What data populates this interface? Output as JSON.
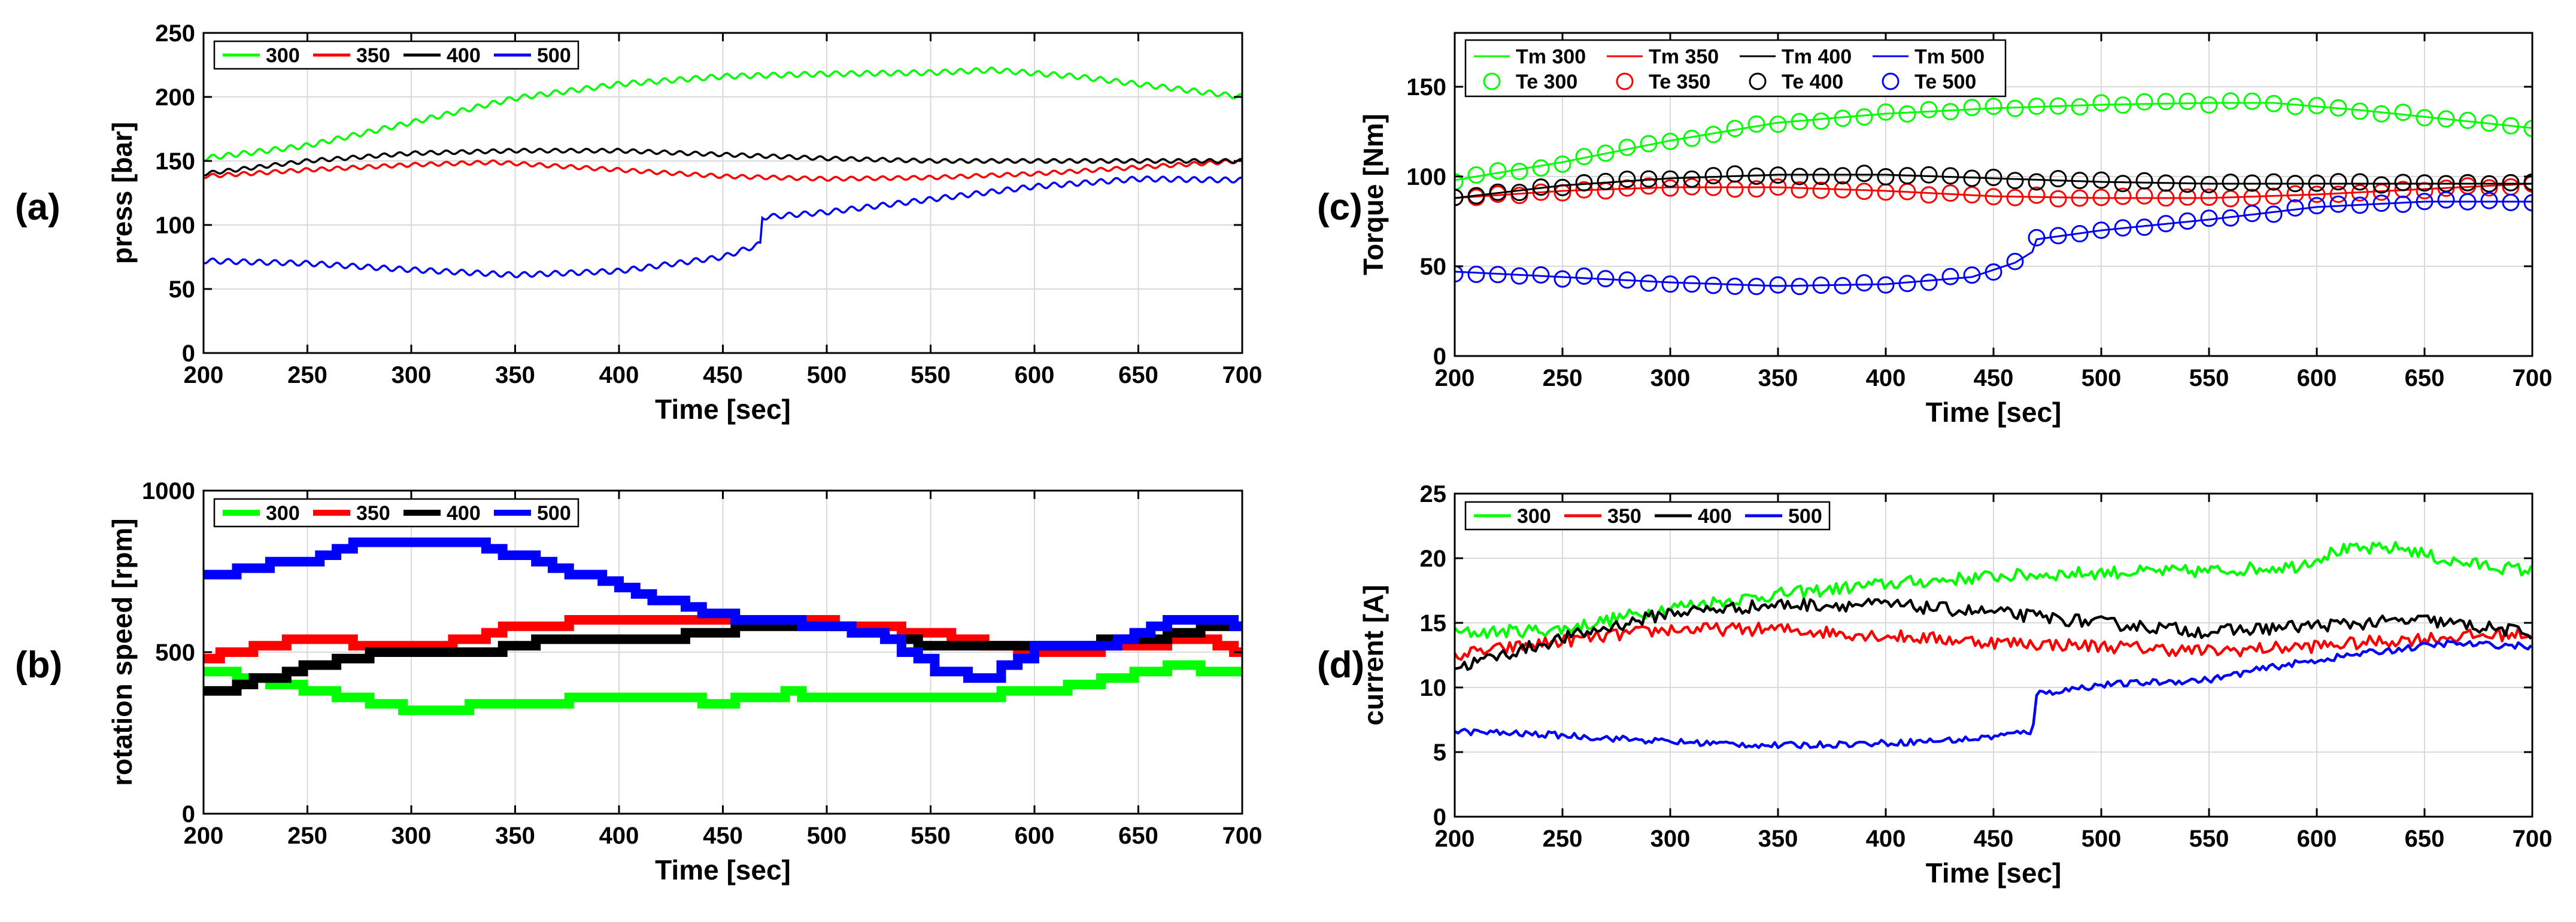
{
  "colors": {
    "green": "#00ff00",
    "red": "#ff0000",
    "black": "#000000",
    "blue": "#0000ff",
    "grid": "#d9d9d9"
  },
  "chart_data": [
    {
      "id": "a",
      "panel_label": "(a)",
      "type": "line",
      "xlabel": "Time [sec]",
      "ylabel": "press [bar]",
      "xlim": [
        200,
        700
      ],
      "ylim": [
        0,
        250
      ],
      "xticks": [
        200,
        250,
        300,
        350,
        400,
        450,
        500,
        550,
        600,
        650,
        700
      ],
      "yticks": [
        0,
        50,
        100,
        150,
        200,
        250
      ],
      "grid": true,
      "legend": "top-left-row",
      "style": "line",
      "series": [
        {
          "name": "300",
          "color": "green",
          "ripple": 2,
          "points": [
            [
              200,
              152
            ],
            [
              250,
              162
            ],
            [
              300,
              180
            ],
            [
              350,
              199
            ],
            [
              400,
              210
            ],
            [
              450,
              216
            ],
            [
              500,
              218
            ],
            [
              550,
              219
            ],
            [
              580,
              221
            ],
            [
              620,
              216
            ],
            [
              660,
              208
            ],
            [
              700,
              200
            ]
          ]
        },
        {
          "name": "350",
          "color": "red",
          "ripple": 1.5,
          "points": [
            [
              200,
              138
            ],
            [
              250,
              143
            ],
            [
              300,
              147
            ],
            [
              340,
              149
            ],
            [
              400,
              143
            ],
            [
              450,
              138
            ],
            [
              500,
              136
            ],
            [
              550,
              137
            ],
            [
              600,
              140
            ],
            [
              650,
              145
            ],
            [
              700,
              150
            ]
          ]
        },
        {
          "name": "400",
          "color": "black",
          "ripple": 1.5,
          "points": [
            [
              200,
              140
            ],
            [
              250,
              150
            ],
            [
              300,
              156
            ],
            [
              350,
              158
            ],
            [
              400,
              158
            ],
            [
              450,
              155
            ],
            [
              500,
              152
            ],
            [
              550,
              150
            ],
            [
              600,
              150
            ],
            [
              650,
              150
            ],
            [
              700,
              150
            ]
          ]
        },
        {
          "name": "500",
          "color": "blue",
          "ripple": 2,
          "points": [
            [
              200,
              72
            ],
            [
              250,
              70
            ],
            [
              300,
              65
            ],
            [
              350,
              61
            ],
            [
              400,
              64
            ],
            [
              450,
              75
            ],
            [
              468,
              85
            ],
            [
              469,
              106
            ],
            [
              500,
              110
            ],
            [
              550,
              120
            ],
            [
              600,
              130
            ],
            [
              650,
              136
            ],
            [
              700,
              135
            ]
          ]
        }
      ]
    },
    {
      "id": "b",
      "panel_label": "(b)",
      "type": "line",
      "xlabel": "Time [sec]",
      "ylabel": "rotation speed [rpm]",
      "xlim": [
        200,
        700
      ],
      "ylim": [
        0,
        1000
      ],
      "xticks": [
        200,
        250,
        300,
        350,
        400,
        450,
        500,
        550,
        600,
        650,
        700
      ],
      "yticks": [
        0,
        500,
        1000
      ],
      "grid": true,
      "legend": "top-left-row",
      "style": "step",
      "series": [
        {
          "name": "300",
          "color": "green",
          "points": [
            [
              200,
              440
            ],
            [
              250,
              380
            ],
            [
              300,
              320
            ],
            [
              350,
              340
            ],
            [
              400,
              360
            ],
            [
              450,
              345
            ],
            [
              480,
              375
            ],
            [
              500,
              360
            ],
            [
              550,
              355
            ],
            [
              600,
              380
            ],
            [
              650,
              440
            ],
            [
              670,
              455
            ],
            [
              700,
              430
            ]
          ]
        },
        {
          "name": "350",
          "color": "red",
          "points": [
            [
              200,
              480
            ],
            [
              250,
              545
            ],
            [
              300,
              510
            ],
            [
              350,
              580
            ],
            [
              400,
              600
            ],
            [
              450,
              590
            ],
            [
              500,
              590
            ],
            [
              550,
              560
            ],
            [
              600,
              500
            ],
            [
              650,
              520
            ],
            [
              680,
              545
            ],
            [
              700,
              500
            ]
          ]
        },
        {
          "name": "400",
          "color": "black",
          "points": [
            [
              200,
              370
            ],
            [
              250,
              460
            ],
            [
              280,
              500
            ],
            [
              330,
              500
            ],
            [
              360,
              540
            ],
            [
              400,
              530
            ],
            [
              450,
              570
            ],
            [
              500,
              580
            ],
            [
              550,
              520
            ],
            [
              600,
              520
            ],
            [
              650,
              540
            ],
            [
              680,
              580
            ],
            [
              700,
              570
            ]
          ]
        },
        {
          "name": "500",
          "color": "blue",
          "points": [
            [
              200,
              740
            ],
            [
              250,
              790
            ],
            [
              270,
              830
            ],
            [
              330,
              830
            ],
            [
              360,
              780
            ],
            [
              400,
              700
            ],
            [
              440,
              620
            ],
            [
              470,
              600
            ],
            [
              520,
              560
            ],
            [
              550,
              450
            ],
            [
              575,
              420
            ],
            [
              600,
              510
            ],
            [
              630,
              520
            ],
            [
              660,
              590
            ],
            [
              690,
              590
            ],
            [
              700,
              570
            ]
          ]
        }
      ]
    },
    {
      "id": "c",
      "panel_label": "(c)",
      "type": "line+scatter",
      "xlabel": "Time [sec]",
      "ylabel": "Torque [Nm]",
      "xlim": [
        200,
        700
      ],
      "ylim": [
        0,
        180
      ],
      "xticks": [
        200,
        250,
        300,
        350,
        400,
        450,
        500,
        550,
        600,
        650,
        700
      ],
      "yticks": [
        0,
        50,
        100,
        150
      ],
      "grid": true,
      "legend": "top-left-2rows",
      "style": "line-markers",
      "series": [
        {
          "name": "Tm 300",
          "marker_name": "Te 300",
          "color": "green",
          "points": [
            [
              200,
              98
            ],
            [
              250,
              108
            ],
            [
              300,
              120
            ],
            [
              350,
              130
            ],
            [
              400,
              135
            ],
            [
              450,
              138
            ],
            [
              500,
              140
            ],
            [
              550,
              141
            ],
            [
              580,
              141
            ],
            [
              620,
              137
            ],
            [
              660,
              132
            ],
            [
              700,
              127
            ]
          ]
        },
        {
          "name": "Tm 350",
          "marker_name": "Te 350",
          "color": "red",
          "points": [
            [
              200,
              88
            ],
            [
              250,
              92
            ],
            [
              300,
              94
            ],
            [
              350,
              94
            ],
            [
              400,
              92
            ],
            [
              450,
              89
            ],
            [
              500,
              88
            ],
            [
              550,
              88
            ],
            [
              600,
              90
            ],
            [
              650,
              93
            ],
            [
              700,
              96
            ]
          ]
        },
        {
          "name": "Tm 400",
          "marker_name": "Te 400",
          "color": "black",
          "points": [
            [
              200,
              88
            ],
            [
              250,
              95
            ],
            [
              300,
              99
            ],
            [
              350,
              101
            ],
            [
              400,
              101
            ],
            [
              450,
              99
            ],
            [
              500,
              97
            ],
            [
              550,
              96
            ],
            [
              600,
              96
            ],
            [
              650,
              96
            ],
            [
              700,
              96
            ]
          ]
        },
        {
          "name": "Tm 500",
          "marker_name": "Te 500",
          "color": "blue",
          "points": [
            [
              200,
              47
            ],
            [
              250,
              44
            ],
            [
              300,
              41
            ],
            [
              350,
              39
            ],
            [
              400,
              40
            ],
            [
              440,
              44
            ],
            [
              460,
              52
            ],
            [
              468,
              58
            ],
            [
              470,
              65
            ],
            [
              500,
              70
            ],
            [
              550,
              76
            ],
            [
              600,
              83
            ],
            [
              650,
              86
            ],
            [
              700,
              86
            ]
          ]
        }
      ]
    },
    {
      "id": "d",
      "panel_label": "(d)",
      "type": "line",
      "xlabel": "Time [sec]",
      "ylabel": "current [A]",
      "xlim": [
        200,
        700
      ],
      "ylim": [
        0,
        25
      ],
      "xticks": [
        200,
        250,
        300,
        350,
        400,
        450,
        500,
        550,
        600,
        650,
        700
      ],
      "yticks": [
        0,
        5,
        10,
        15,
        20,
        25
      ],
      "grid": true,
      "legend": "top-left-row",
      "style": "noisy",
      "series": [
        {
          "name": "300",
          "color": "green",
          "noise": 0.5,
          "points": [
            [
              200,
              14.2
            ],
            [
              250,
              14.5
            ],
            [
              300,
              16.2
            ],
            [
              350,
              17.2
            ],
            [
              400,
              18.0
            ],
            [
              450,
              18.6
            ],
            [
              500,
              18.9
            ],
            [
              550,
              19.0
            ],
            [
              590,
              19.4
            ],
            [
              610,
              20.6
            ],
            [
              640,
              20.8
            ],
            [
              660,
              19.8
            ],
            [
              700,
              19.0
            ]
          ]
        },
        {
          "name": "350",
          "color": "red",
          "noise": 0.5,
          "points": [
            [
              200,
              12.5
            ],
            [
              250,
              13.6
            ],
            [
              300,
              14.5
            ],
            [
              350,
              14.5
            ],
            [
              400,
              14.0
            ],
            [
              450,
              13.5
            ],
            [
              500,
              13.2
            ],
            [
              550,
              12.8
            ],
            [
              600,
              13.2
            ],
            [
              650,
              13.8
            ],
            [
              700,
              14.2
            ]
          ]
        },
        {
          "name": "400",
          "color": "black",
          "noise": 0.5,
          "points": [
            [
              200,
              11.5
            ],
            [
              250,
              13.8
            ],
            [
              300,
              15.8
            ],
            [
              350,
              16.4
            ],
            [
              400,
              16.4
            ],
            [
              450,
              15.8
            ],
            [
              500,
              15.0
            ],
            [
              550,
              14.3
            ],
            [
              600,
              14.8
            ],
            [
              650,
              15.2
            ],
            [
              700,
              14.2
            ]
          ]
        },
        {
          "name": "500",
          "color": "blue",
          "noise": 0.25,
          "points": [
            [
              200,
              6.6
            ],
            [
              250,
              6.3
            ],
            [
              300,
              5.8
            ],
            [
              350,
              5.5
            ],
            [
              400,
              5.7
            ],
            [
              440,
              6.0
            ],
            [
              468,
              6.6
            ],
            [
              470,
              9.5
            ],
            [
              500,
              10.2
            ],
            [
              550,
              10.6
            ],
            [
              580,
              11.6
            ],
            [
              620,
              12.6
            ],
            [
              660,
              13.4
            ],
            [
              700,
              13.2
            ]
          ]
        }
      ]
    }
  ]
}
